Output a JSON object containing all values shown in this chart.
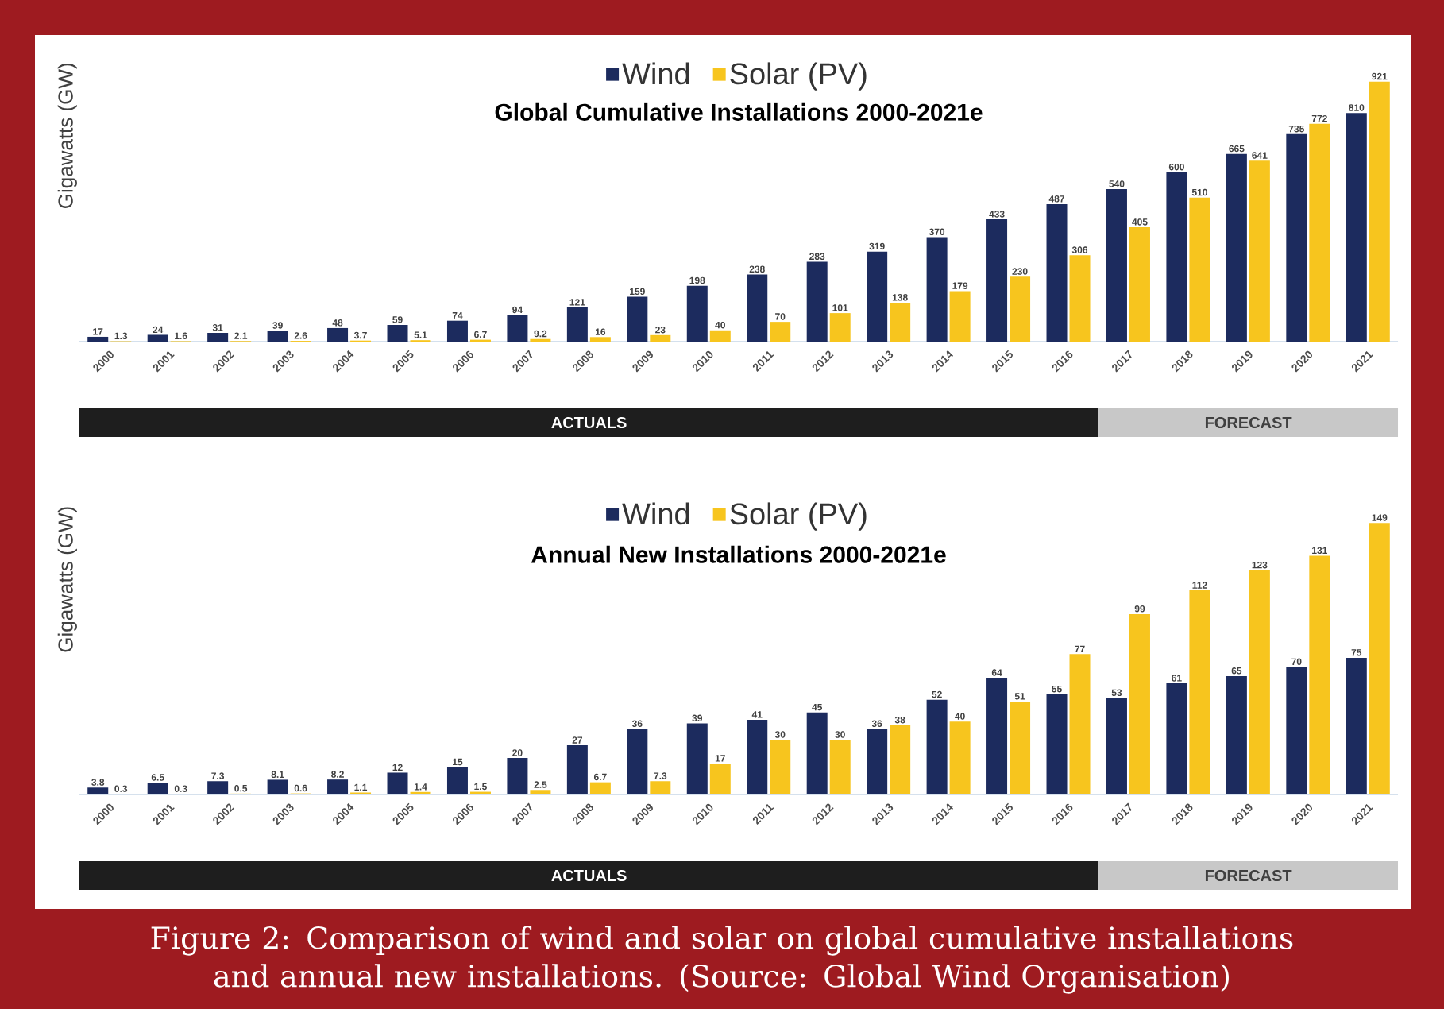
{
  "chart_data": [
    {
      "type": "bar",
      "title": "Global Cumulative Installations 2000-2021e",
      "ylabel": "Gigawatts (GW)",
      "categories": [
        "2000",
        "2001",
        "2002",
        "2003",
        "2004",
        "2005",
        "2006",
        "2007",
        "2008",
        "2009",
        "2010",
        "2011",
        "2012",
        "2013",
        "2014",
        "2015",
        "2016",
        "2017",
        "2018",
        "2019",
        "2020",
        "2021"
      ],
      "series": [
        {
          "name": "Wind",
          "color": "#1c2b5e",
          "values": [
            17,
            24,
            31,
            39,
            48,
            59,
            74,
            94,
            121,
            159,
            198,
            238,
            283,
            319,
            370,
            433,
            487,
            540,
            600,
            665,
            735,
            810
          ]
        },
        {
          "name": "Solar (PV)",
          "color": "#f7c51e",
          "values": [
            1.3,
            1.6,
            2.1,
            2.6,
            3.7,
            5.1,
            6.7,
            9.2,
            16,
            23,
            40,
            70,
            101,
            138,
            179,
            230,
            306,
            405,
            510,
            641,
            772,
            921
          ]
        }
      ],
      "data_labels": true,
      "legend": "top",
      "annotations": [
        "ACTUALS",
        "FORECAST"
      ]
    },
    {
      "type": "bar",
      "title": "Annual New Installations 2000-2021e",
      "ylabel": "Gigawatts (GW)",
      "categories": [
        "2000",
        "2001",
        "2002",
        "2003",
        "2004",
        "2005",
        "2006",
        "2007",
        "2008",
        "2009",
        "2010",
        "2011",
        "2012",
        "2013",
        "2014",
        "2015",
        "2016",
        "2017",
        "2018",
        "2019",
        "2020",
        "2021"
      ],
      "series": [
        {
          "name": "Wind",
          "color": "#1c2b5e",
          "values": [
            3.8,
            6.5,
            7.3,
            8.1,
            8.2,
            12,
            15,
            20,
            27,
            36,
            39,
            41,
            45,
            36,
            52,
            64,
            55,
            53,
            61,
            65,
            70,
            75
          ]
        },
        {
          "name": "Solar (PV)",
          "color": "#f7c51e",
          "values": [
            0.3,
            0.3,
            0.5,
            0.6,
            1.1,
            1.4,
            1.5,
            2.5,
            6.7,
            7.3,
            17,
            30,
            30,
            38,
            40,
            51,
            77,
            99,
            112,
            123,
            131,
            149
          ]
        }
      ],
      "data_labels": true,
      "legend": "top",
      "annotations": [
        "ACTUALS",
        "FORECAST",
        "Figure 2: Comparison of wind and solar on global cumulative installations and annual new installations. (Source: Global Wind Organisation)"
      ]
    }
  ]
}
